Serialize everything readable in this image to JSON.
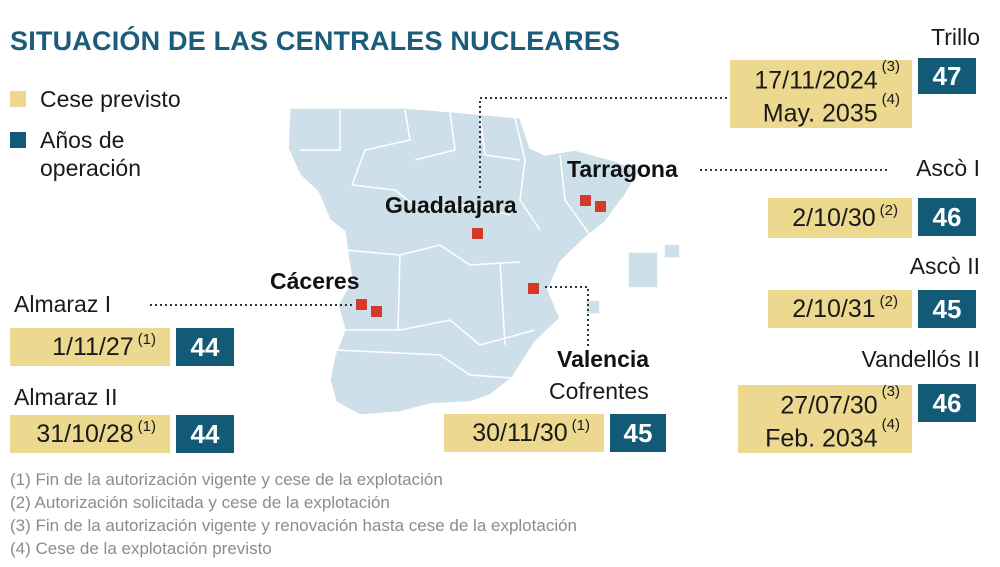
{
  "title": "SITUACIÓN DE LAS CENTRALES NUCLEARES",
  "legend": [
    {
      "label": "Cese previsto",
      "color": "#ecd98f"
    },
    {
      "label": "Años de operación",
      "color": "#135a77"
    }
  ],
  "cities": {
    "guadalajara": "Guadalajara",
    "tarragona": "Tarragona",
    "caceres": "Cáceres",
    "valencia": "Valencia"
  },
  "plants": {
    "trillo": {
      "name": "Trillo",
      "date1": "17/11/2024",
      "note1": "(3)",
      "date2": "May. 2035",
      "note2": "(4)",
      "years": "47"
    },
    "asco1": {
      "name": "Ascò I",
      "date": "2/10/30",
      "note": "(2)",
      "years": "46"
    },
    "asco2": {
      "name": "Ascò II",
      "date": "2/10/31",
      "note": "(2)",
      "years": "45"
    },
    "vandellos2": {
      "name": "Vandellós II",
      "date1": "27/07/30",
      "note1": "(3)",
      "date2": "Feb. 2034",
      "note2": "(4)",
      "years": "46"
    },
    "almaraz1": {
      "name": "Almaraz I",
      "date": "1/11/27",
      "note": "(1)",
      "years": "44"
    },
    "almaraz2": {
      "name": "Almaraz II",
      "date": "31/10/28",
      "note": "(1)",
      "years": "44"
    },
    "cofrentes": {
      "name": "Cofrentes",
      "date": "30/11/30",
      "note": "(1)",
      "years": "45"
    }
  },
  "footnotes": [
    "(1) Fin de la autorización vigente y cese de la explotación",
    "(2) Autorización solicitada y cese de la explotación",
    "(3) Fin de la autorización vigente y renovación hasta cese de la explotación",
    "(4) Cese de la explotación previsto"
  ],
  "colors": {
    "map_fill": "#cddfe9",
    "map_border": "#ffffff",
    "plant_marker": "#d23a2a",
    "leader_line": "#333333"
  }
}
